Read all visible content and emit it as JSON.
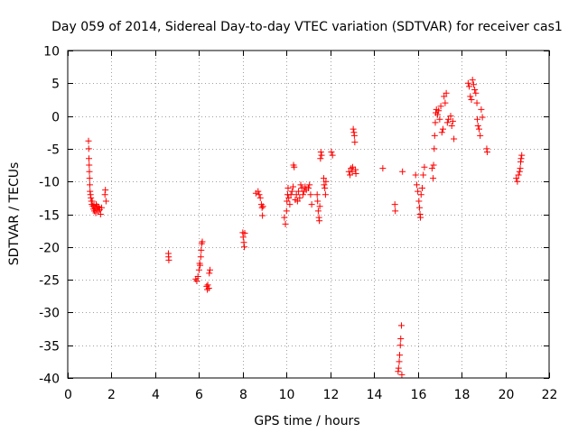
{
  "chart_data": {
    "type": "scatter",
    "title": "Day 059 of 2014, Sidereal Day-to-day VTEC variation (SDTVAR) for receiver cas1",
    "xlabel": "GPS time / hours",
    "ylabel": "SDTVAR / TECUs",
    "xlim": [
      0,
      22
    ],
    "ylim": [
      -40,
      10
    ],
    "xticks": [
      0,
      2,
      4,
      6,
      8,
      10,
      12,
      14,
      16,
      18,
      20,
      22
    ],
    "yticks": [
      -40,
      -35,
      -30,
      -25,
      -20,
      -15,
      -10,
      -5,
      0,
      5,
      10
    ],
    "grid": true,
    "marker": "+",
    "color": "#ff0000",
    "series": [
      {
        "name": "cas1",
        "points": [
          [
            0.95,
            -3.8
          ],
          [
            0.96,
            -5.0
          ],
          [
            0.97,
            -6.5
          ],
          [
            0.98,
            -7.5
          ],
          [
            0.99,
            -8.5
          ],
          [
            1.0,
            -9.5
          ],
          [
            1.01,
            -10.5
          ],
          [
            1.02,
            -11.5
          ],
          [
            1.04,
            -12.0
          ],
          [
            1.06,
            -12.5
          ],
          [
            1.08,
            -13.0
          ],
          [
            1.1,
            -13.5
          ],
          [
            1.12,
            -13.0
          ],
          [
            1.15,
            -13.8
          ],
          [
            1.18,
            -14.2
          ],
          [
            1.2,
            -13.6
          ],
          [
            1.22,
            -14.5
          ],
          [
            1.25,
            -14.0
          ],
          [
            1.28,
            -14.8
          ],
          [
            1.3,
            -13.5
          ],
          [
            1.33,
            -14.2
          ],
          [
            1.36,
            -13.8
          ],
          [
            1.4,
            -14.5
          ],
          [
            1.43,
            -13.9
          ],
          [
            1.46,
            -14.3
          ],
          [
            1.5,
            -15.0
          ],
          [
            1.55,
            -14.0
          ],
          [
            1.7,
            -12.0
          ],
          [
            1.72,
            -11.3
          ],
          [
            1.75,
            -13.0
          ],
          [
            4.6,
            -21.0
          ],
          [
            4.61,
            -21.5
          ],
          [
            4.62,
            -22.0
          ],
          [
            5.85,
            -24.9
          ],
          [
            5.9,
            -25.2
          ],
          [
            5.95,
            -24.5
          ],
          [
            6.0,
            -23.5
          ],
          [
            6.03,
            -22.5
          ],
          [
            6.05,
            -22.8
          ],
          [
            6.08,
            -21.5
          ],
          [
            6.1,
            -20.5
          ],
          [
            6.12,
            -19.5
          ],
          [
            6.15,
            -19.2
          ],
          [
            6.35,
            -26.0
          ],
          [
            6.38,
            -26.5
          ],
          [
            6.4,
            -25.8
          ],
          [
            6.45,
            -26.3
          ],
          [
            6.47,
            -24.0
          ],
          [
            6.5,
            -23.5
          ],
          [
            8.0,
            -17.8
          ],
          [
            8.02,
            -18.5
          ],
          [
            8.05,
            -19.3
          ],
          [
            8.07,
            -20.0
          ],
          [
            8.09,
            -17.9
          ],
          [
            8.6,
            -11.8
          ],
          [
            8.7,
            -11.5
          ],
          [
            8.75,
            -12.0
          ],
          [
            8.8,
            -12.5
          ],
          [
            8.85,
            -13.5
          ],
          [
            8.88,
            -14.0
          ],
          [
            8.9,
            -15.2
          ],
          [
            8.92,
            -13.8
          ],
          [
            9.9,
            -15.5
          ],
          [
            9.95,
            -16.5
          ],
          [
            10.0,
            -14.5
          ],
          [
            10.02,
            -13.0
          ],
          [
            10.05,
            -12.0
          ],
          [
            10.07,
            -11.0
          ],
          [
            10.1,
            -12.5
          ],
          [
            10.15,
            -13.5
          ],
          [
            10.2,
            -12.0
          ],
          [
            10.25,
            -11.5
          ],
          [
            10.3,
            -10.8
          ],
          [
            10.32,
            -7.5
          ],
          [
            10.35,
            -7.8
          ],
          [
            10.4,
            -12.8
          ],
          [
            10.45,
            -12.0
          ],
          [
            10.5,
            -13.0
          ],
          [
            10.55,
            -11.5
          ],
          [
            10.6,
            -12.5
          ],
          [
            10.65,
            -10.5
          ],
          [
            10.7,
            -11.0
          ],
          [
            10.75,
            -12.0
          ],
          [
            10.8,
            -11.5
          ],
          [
            10.85,
            -10.8
          ],
          [
            10.9,
            -11.3
          ],
          [
            11.0,
            -11.0
          ],
          [
            11.05,
            -10.5
          ],
          [
            11.1,
            -12.0
          ],
          [
            11.15,
            -13.5
          ],
          [
            11.4,
            -12.0
          ],
          [
            11.42,
            -13.0
          ],
          [
            11.45,
            -14.5
          ],
          [
            11.48,
            -15.5
          ],
          [
            11.5,
            -16.0
          ],
          [
            11.52,
            -13.8
          ],
          [
            11.55,
            -6.5
          ],
          [
            11.57,
            -5.5
          ],
          [
            11.6,
            -6.0
          ],
          [
            11.7,
            -9.5
          ],
          [
            11.72,
            -10.5
          ],
          [
            11.75,
            -11.0
          ],
          [
            11.78,
            -12.0
          ],
          [
            11.8,
            -10.0
          ],
          [
            12.05,
            -5.5
          ],
          [
            12.1,
            -6.0
          ],
          [
            12.85,
            -8.5
          ],
          [
            12.9,
            -9.0
          ],
          [
            12.95,
            -8.0
          ],
          [
            13.0,
            -8.5
          ],
          [
            13.02,
            -7.8
          ],
          [
            13.05,
            -2.0
          ],
          [
            13.08,
            -2.5
          ],
          [
            13.1,
            -3.0
          ],
          [
            13.12,
            -4.0
          ],
          [
            13.15,
            -8.2
          ],
          [
            13.17,
            -8.8
          ],
          [
            14.4,
            -8.0
          ],
          [
            14.95,
            -13.5
          ],
          [
            14.97,
            -14.5
          ],
          [
            15.1,
            -39.0
          ],
          [
            15.12,
            -38.5
          ],
          [
            15.15,
            -37.5
          ],
          [
            15.17,
            -36.5
          ],
          [
            15.2,
            -35.0
          ],
          [
            15.22,
            -34.0
          ],
          [
            15.25,
            -32.0
          ],
          [
            15.27,
            -39.5
          ],
          [
            15.3,
            -8.5
          ],
          [
            15.9,
            -9.0
          ],
          [
            15.95,
            -10.5
          ],
          [
            16.0,
            -11.5
          ],
          [
            16.05,
            -13.0
          ],
          [
            16.08,
            -14.0
          ],
          [
            16.1,
            -15.0
          ],
          [
            16.12,
            -15.5
          ],
          [
            16.15,
            -12.0
          ],
          [
            16.2,
            -11.0
          ],
          [
            16.25,
            -9.0
          ],
          [
            16.3,
            -7.8
          ],
          [
            16.65,
            -8.0
          ],
          [
            16.7,
            -9.5
          ],
          [
            16.72,
            -7.5
          ],
          [
            16.75,
            -5.0
          ],
          [
            16.77,
            -3.0
          ],
          [
            16.8,
            -1.0
          ],
          [
            16.82,
            0.5
          ],
          [
            16.85,
            1.0
          ],
          [
            16.9,
            0.2
          ],
          [
            16.95,
            0.8
          ],
          [
            17.0,
            -0.5
          ],
          [
            17.05,
            1.5
          ],
          [
            17.1,
            -2.5
          ],
          [
            17.15,
            -2.0
          ],
          [
            17.2,
            3.0
          ],
          [
            17.25,
            2.0
          ],
          [
            17.3,
            3.5
          ],
          [
            17.35,
            -1.0
          ],
          [
            17.4,
            -0.5
          ],
          [
            17.5,
            0.0
          ],
          [
            17.55,
            -1.5
          ],
          [
            17.6,
            -0.8
          ],
          [
            17.65,
            -3.5
          ],
          [
            18.3,
            5.0
          ],
          [
            18.35,
            4.5
          ],
          [
            18.4,
            3.0
          ],
          [
            18.45,
            2.5
          ],
          [
            18.5,
            5.5
          ],
          [
            18.55,
            4.8
          ],
          [
            18.6,
            4.0
          ],
          [
            18.65,
            3.5
          ],
          [
            18.7,
            2.0
          ],
          [
            18.72,
            -0.5
          ],
          [
            18.75,
            -1.5
          ],
          [
            18.8,
            -2.0
          ],
          [
            18.85,
            -3.0
          ],
          [
            18.9,
            1.0
          ],
          [
            18.95,
            -0.2
          ],
          [
            19.15,
            -5.0
          ],
          [
            19.17,
            -5.5
          ],
          [
            20.5,
            -9.5
          ],
          [
            20.55,
            -10.0
          ],
          [
            20.6,
            -9.0
          ],
          [
            20.65,
            -8.5
          ],
          [
            20.68,
            -8.0
          ],
          [
            20.7,
            -7.0
          ],
          [
            20.72,
            -6.5
          ],
          [
            20.75,
            -6.0
          ]
        ]
      }
    ]
  }
}
